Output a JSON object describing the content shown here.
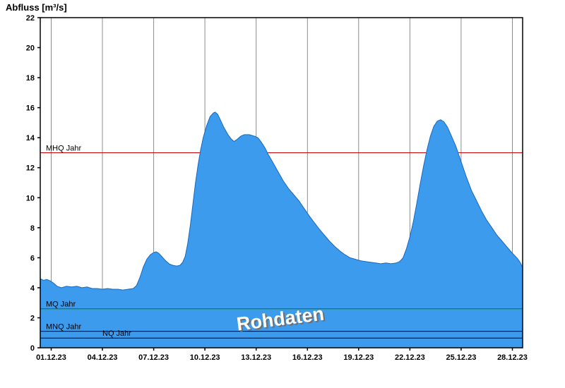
{
  "chart_data": {
    "type": "area",
    "title": "Abfluss [m³/s]",
    "x_unit": "days since 01.12.23 00:00",
    "xlim": [
      -0.64,
      27.6
    ],
    "ylim": [
      0,
      22
    ],
    "grid": "vertical-only",
    "y_ticks": [
      0,
      2,
      4,
      6,
      8,
      10,
      12,
      14,
      16,
      18,
      20,
      22
    ],
    "x_ticks": [
      {
        "day": 0,
        "label": "01.12.23"
      },
      {
        "day": 3,
        "label": "04.12.23"
      },
      {
        "day": 6,
        "label": "07.12.23"
      },
      {
        "day": 9,
        "label": "10.12.23"
      },
      {
        "day": 12,
        "label": "13.12.23"
      },
      {
        "day": 15,
        "label": "16.12.23"
      },
      {
        "day": 18,
        "label": "19.12.23"
      },
      {
        "day": 21,
        "label": "22.12.23"
      },
      {
        "day": 24,
        "label": "25.12.23"
      },
      {
        "day": 27,
        "label": "28.12.23"
      }
    ],
    "colors": {
      "grid": "#8c8c8c",
      "axis": "#000000",
      "area_fill": "#3d9bee",
      "area_line": "#1668be"
    },
    "reference_lines": [
      {
        "label": "MHQ Jahr",
        "value": 13.0,
        "color": "#cc0000",
        "over_area": false,
        "label_dx": 8
      },
      {
        "label": "MQ Jahr",
        "value": 2.6,
        "color": "#008000",
        "over_area": true,
        "label_dx": 8
      },
      {
        "label": "MNQ Jahr",
        "value": 1.1,
        "color": "#000000",
        "over_area": true,
        "label_dx": 8
      },
      {
        "label": "NQ Jahr",
        "value": 0.65,
        "color": "#000000",
        "over_area": true,
        "label_dx": 88
      }
    ],
    "watermark": {
      "text": "Rohdaten",
      "color": "#ffffff",
      "shadow": "#6e6e6e",
      "rotation_deg": -7
    },
    "series": [
      {
        "name": "Rohdaten",
        "points": [
          [
            -0.64,
            4.6
          ],
          [
            -0.45,
            4.5
          ],
          [
            -0.25,
            4.55
          ],
          [
            -0.05,
            4.45
          ],
          [
            0.15,
            4.3
          ],
          [
            0.35,
            4.1
          ],
          [
            0.6,
            4.0
          ],
          [
            0.9,
            4.1
          ],
          [
            1.2,
            4.05
          ],
          [
            1.5,
            4.1
          ],
          [
            1.8,
            4.0
          ],
          [
            2.1,
            4.05
          ],
          [
            2.4,
            3.95
          ],
          [
            2.7,
            3.95
          ],
          [
            3.0,
            3.9
          ],
          [
            3.3,
            3.95
          ],
          [
            3.6,
            3.9
          ],
          [
            3.9,
            3.9
          ],
          [
            4.2,
            3.85
          ],
          [
            4.5,
            3.9
          ],
          [
            4.8,
            3.95
          ],
          [
            5.0,
            4.15
          ],
          [
            5.2,
            4.7
          ],
          [
            5.4,
            5.4
          ],
          [
            5.6,
            5.9
          ],
          [
            5.8,
            6.2
          ],
          [
            6.0,
            6.35
          ],
          [
            6.15,
            6.4
          ],
          [
            6.3,
            6.3
          ],
          [
            6.5,
            6.05
          ],
          [
            6.7,
            5.8
          ],
          [
            6.9,
            5.6
          ],
          [
            7.1,
            5.5
          ],
          [
            7.35,
            5.45
          ],
          [
            7.55,
            5.5
          ],
          [
            7.7,
            5.7
          ],
          [
            7.85,
            6.1
          ],
          [
            8.0,
            7.0
          ],
          [
            8.15,
            8.2
          ],
          [
            8.3,
            9.6
          ],
          [
            8.45,
            11.0
          ],
          [
            8.6,
            12.2
          ],
          [
            8.75,
            13.2
          ],
          [
            8.9,
            14.0
          ],
          [
            9.1,
            14.8
          ],
          [
            9.3,
            15.4
          ],
          [
            9.5,
            15.65
          ],
          [
            9.6,
            15.7
          ],
          [
            9.75,
            15.55
          ],
          [
            9.9,
            15.2
          ],
          [
            10.1,
            14.7
          ],
          [
            10.35,
            14.2
          ],
          [
            10.55,
            13.9
          ],
          [
            10.7,
            13.75
          ],
          [
            10.9,
            13.9
          ],
          [
            11.1,
            14.1
          ],
          [
            11.3,
            14.2
          ],
          [
            11.6,
            14.2
          ],
          [
            11.9,
            14.1
          ],
          [
            12.1,
            14.0
          ],
          [
            12.3,
            13.7
          ],
          [
            12.5,
            13.35
          ],
          [
            12.7,
            12.9
          ],
          [
            13.0,
            12.3
          ],
          [
            13.3,
            11.7
          ],
          [
            13.6,
            11.1
          ],
          [
            13.9,
            10.6
          ],
          [
            14.2,
            10.2
          ],
          [
            14.5,
            9.8
          ],
          [
            14.8,
            9.3
          ],
          [
            15.1,
            8.8
          ],
          [
            15.4,
            8.35
          ],
          [
            15.7,
            7.9
          ],
          [
            16.0,
            7.5
          ],
          [
            16.3,
            7.1
          ],
          [
            16.6,
            6.75
          ],
          [
            16.9,
            6.45
          ],
          [
            17.2,
            6.2
          ],
          [
            17.5,
            6.0
          ],
          [
            17.8,
            5.9
          ],
          [
            18.1,
            5.8
          ],
          [
            18.4,
            5.75
          ],
          [
            18.7,
            5.7
          ],
          [
            19.0,
            5.65
          ],
          [
            19.3,
            5.6
          ],
          [
            19.6,
            5.65
          ],
          [
            19.9,
            5.6
          ],
          [
            20.2,
            5.65
          ],
          [
            20.4,
            5.75
          ],
          [
            20.6,
            6.0
          ],
          [
            20.8,
            6.6
          ],
          [
            21.0,
            7.4
          ],
          [
            21.2,
            8.4
          ],
          [
            21.4,
            9.6
          ],
          [
            21.6,
            10.9
          ],
          [
            21.8,
            12.1
          ],
          [
            22.0,
            13.2
          ],
          [
            22.2,
            14.1
          ],
          [
            22.4,
            14.75
          ],
          [
            22.6,
            15.1
          ],
          [
            22.8,
            15.2
          ],
          [
            23.0,
            15.05
          ],
          [
            23.2,
            14.7
          ],
          [
            23.4,
            14.2
          ],
          [
            23.7,
            13.4
          ],
          [
            24.0,
            12.4
          ],
          [
            24.3,
            11.4
          ],
          [
            24.6,
            10.5
          ],
          [
            24.9,
            9.8
          ],
          [
            25.2,
            9.1
          ],
          [
            25.5,
            8.5
          ],
          [
            25.8,
            8.0
          ],
          [
            26.1,
            7.5
          ],
          [
            26.4,
            7.1
          ],
          [
            26.7,
            6.7
          ],
          [
            27.0,
            6.3
          ],
          [
            27.3,
            5.95
          ],
          [
            27.45,
            5.7
          ],
          [
            27.6,
            5.35
          ]
        ]
      }
    ]
  }
}
